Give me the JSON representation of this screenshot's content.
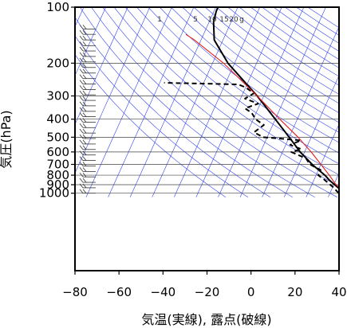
{
  "chart_data": {
    "type": "line",
    "chart_kind": "skew-t log-p diagram",
    "xlabel": "気温(実線), 露点(破線)",
    "ylabel": "気圧(hPa)",
    "x_axis": {
      "ticks": [
        -80,
        -60,
        -40,
        -20,
        0,
        20,
        40
      ],
      "xlim": [
        -80,
        40
      ],
      "units": "°C"
    },
    "y_axis": {
      "ticks": [
        100,
        200,
        300,
        400,
        500,
        600,
        700,
        800,
        900,
        1000
      ],
      "ylim": [
        1050,
        100
      ],
      "scale": "log",
      "inverted": true,
      "units": "hPa"
    },
    "mixing_ratio_labels": [
      "1",
      "5",
      "10",
      "15",
      "20",
      "g"
    ],
    "series": [
      {
        "role": "temperature",
        "style": "solid",
        "color": "#000000",
        "points": [
          {
            "p": 1000,
            "t": 27
          },
          {
            "p": 925,
            "t": 22
          },
          {
            "p": 850,
            "t": 17
          },
          {
            "p": 800,
            "t": 14
          },
          {
            "p": 700,
            "t": 6
          },
          {
            "p": 600,
            "t": -2
          },
          {
            "p": 500,
            "t": -10
          },
          {
            "p": 400,
            "t": -20
          },
          {
            "p": 300,
            "t": -33
          },
          {
            "p": 250,
            "t": -42
          },
          {
            "p": 200,
            "t": -53
          },
          {
            "p": 150,
            "t": -64
          },
          {
            "p": 120,
            "t": -68
          },
          {
            "p": 105,
            "t": -69
          },
          {
            "p": 100,
            "t": -69
          }
        ]
      },
      {
        "role": "dewpoint",
        "style": "dashed",
        "color": "#000000",
        "points": [
          {
            "p": 1000,
            "t": 24
          },
          {
            "p": 925,
            "t": 20
          },
          {
            "p": 850,
            "t": 15
          },
          {
            "p": 800,
            "t": 11
          },
          {
            "p": 750,
            "t": 11
          },
          {
            "p": 700,
            "t": 5
          },
          {
            "p": 650,
            "t": 2
          },
          {
            "p": 600,
            "t": -6
          },
          {
            "p": 580,
            "t": -2
          },
          {
            "p": 550,
            "t": -8
          },
          {
            "p": 520,
            "t": -4
          },
          {
            "p": 500,
            "t": -22
          },
          {
            "p": 470,
            "t": -27
          },
          {
            "p": 430,
            "t": -24
          },
          {
            "p": 400,
            "t": -29
          },
          {
            "p": 370,
            "t": -32
          },
          {
            "p": 350,
            "t": -36
          },
          {
            "p": 330,
            "t": -31
          },
          {
            "p": 310,
            "t": -38
          },
          {
            "p": 290,
            "t": -35
          },
          {
            "p": 270,
            "t": -40
          },
          {
            "p": 260,
            "t": -44
          },
          {
            "p": 255,
            "t": -78
          }
        ]
      },
      {
        "role": "parcel",
        "style": "solid",
        "color": "#e02020",
        "points": [
          {
            "p": 1000,
            "t": 27
          },
          {
            "p": 900,
            "t": 21
          },
          {
            "p": 800,
            "t": 16
          },
          {
            "p": 700,
            "t": 10
          },
          {
            "p": 600,
            "t": 3
          },
          {
            "p": 500,
            "t": -6
          },
          {
            "p": 400,
            "t": -18
          },
          {
            "p": 300,
            "t": -33
          },
          {
            "p": 200,
            "t": -55
          },
          {
            "p": 150,
            "t": -73
          },
          {
            "p": 140,
            "t": -78
          }
        ]
      }
    ],
    "colors": {
      "background_lines": "#3344ee",
      "grid": "#444444",
      "parcel": "#e02020",
      "wind_barbs": "#333333"
    }
  }
}
